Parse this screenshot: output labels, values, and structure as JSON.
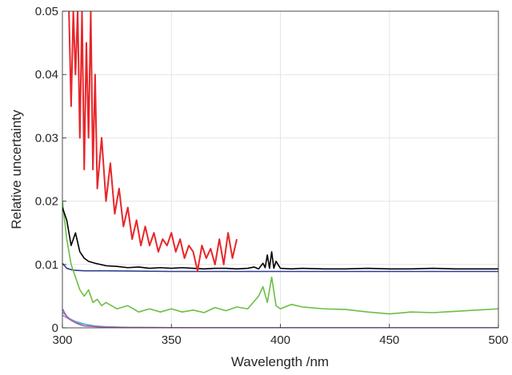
{
  "chart_data": {
    "type": "line",
    "title": "",
    "xlabel": "Wavelength /nm",
    "ylabel": "Relative uncertainty",
    "xlim": [
      300,
      500
    ],
    "ylim": [
      0,
      0.05
    ],
    "grid": true,
    "x_ticks": [
      300,
      350,
      400,
      450,
      500
    ],
    "x_tick_labels": [
      "300",
      "350",
      "400",
      "450",
      "500"
    ],
    "y_ticks": [
      0,
      0.01,
      0.02,
      0.03,
      0.04,
      0.05
    ],
    "y_tick_labels": [
      "0",
      "0.01",
      "0.02",
      "0.03",
      "0.04",
      "0.05"
    ],
    "series": [
      {
        "color": "#e8262a",
        "x": [
          303,
          304,
          305,
          306,
          307,
          308,
          309,
          310,
          311,
          312,
          313,
          314,
          315,
          316,
          318,
          320,
          322,
          324,
          326,
          328,
          330,
          332,
          334,
          336,
          338,
          340,
          342,
          344,
          346,
          348,
          350,
          352,
          354,
          356,
          358,
          360,
          362,
          364,
          366,
          368,
          370,
          372,
          374,
          376,
          378,
          380
        ],
        "y": [
          0.05,
          0.035,
          0.05,
          0.04,
          0.05,
          0.03,
          0.05,
          0.025,
          0.045,
          0.03,
          0.05,
          0.025,
          0.04,
          0.022,
          0.03,
          0.02,
          0.026,
          0.018,
          0.022,
          0.016,
          0.019,
          0.014,
          0.017,
          0.013,
          0.016,
          0.013,
          0.015,
          0.012,
          0.014,
          0.013,
          0.015,
          0.012,
          0.014,
          0.011,
          0.013,
          0.012,
          0.009,
          0.013,
          0.011,
          0.0125,
          0.01,
          0.014,
          0.01,
          0.015,
          0.011,
          0.014
        ]
      },
      {
        "color": "#000000",
        "x": [
          300,
          302,
          304,
          306,
          308,
          310,
          312,
          315,
          320,
          325,
          330,
          335,
          340,
          345,
          350,
          355,
          360,
          365,
          370,
          375,
          380,
          385,
          388,
          390,
          392,
          393,
          394,
          395,
          396,
          397,
          398,
          400,
          405,
          410,
          420,
          430,
          440,
          450,
          460,
          470,
          480,
          490,
          500
        ],
        "y": [
          0.019,
          0.017,
          0.013,
          0.015,
          0.012,
          0.011,
          0.0105,
          0.0102,
          0.0098,
          0.0097,
          0.0095,
          0.0096,
          0.0094,
          0.0095,
          0.0094,
          0.0095,
          0.0094,
          0.0093,
          0.0094,
          0.0094,
          0.0093,
          0.0094,
          0.0096,
          0.0093,
          0.0102,
          0.0095,
          0.0115,
          0.0094,
          0.012,
          0.0094,
          0.0105,
          0.0094,
          0.0093,
          0.0094,
          0.0093,
          0.0093,
          0.0094,
          0.0093,
          0.0093,
          0.0094,
          0.0093,
          0.0093,
          0.0093
        ]
      },
      {
        "color": "#2e3f8f",
        "x": [
          300,
          302,
          305,
          310,
          320,
          350,
          400,
          450,
          500
        ],
        "y": [
          0.0102,
          0.0094,
          0.0091,
          0.009,
          0.009,
          0.0089,
          0.0089,
          0.0089,
          0.0089
        ]
      },
      {
        "color": "#6abf45",
        "x": [
          300,
          302,
          304,
          306,
          308,
          310,
          312,
          314,
          316,
          318,
          320,
          325,
          330,
          335,
          340,
          345,
          350,
          355,
          360,
          365,
          370,
          375,
          380,
          385,
          390,
          392,
          394,
          396,
          398,
          400,
          405,
          410,
          420,
          430,
          440,
          450,
          460,
          470,
          480,
          490,
          500
        ],
        "y": [
          0.02,
          0.014,
          0.01,
          0.008,
          0.006,
          0.005,
          0.006,
          0.004,
          0.0045,
          0.0035,
          0.004,
          0.003,
          0.0035,
          0.0025,
          0.003,
          0.0025,
          0.003,
          0.0025,
          0.0028,
          0.0024,
          0.0032,
          0.0027,
          0.0033,
          0.003,
          0.005,
          0.0065,
          0.004,
          0.008,
          0.0035,
          0.003,
          0.0037,
          0.0033,
          0.003,
          0.0029,
          0.0025,
          0.0022,
          0.0025,
          0.0024,
          0.0026,
          0.0028,
          0.003
        ]
      },
      {
        "color": "#b05aa8",
        "x": [
          300,
          302,
          304,
          306,
          308,
          310,
          315,
          320,
          330,
          350,
          400,
          450,
          500
        ],
        "y": [
          0.003,
          0.0018,
          0.0012,
          0.0008,
          0.0005,
          0.0003,
          0.0002,
          0.0001,
          5e-05,
          2e-05,
          1e-05,
          1e-05,
          1e-05
        ]
      },
      {
        "color": "#4fb3c8",
        "x": [
          300,
          303,
          306,
          310,
          315,
          320,
          330,
          350,
          400,
          450,
          500
        ],
        "y": [
          0.0025,
          0.0015,
          0.001,
          0.0006,
          0.0003,
          0.00015,
          5e-05,
          2e-05,
          1e-05,
          1e-05,
          1e-05
        ]
      },
      {
        "color": "#9b8fd0",
        "x": [
          300,
          304,
          308,
          314,
          320,
          330,
          350,
          400,
          500
        ],
        "y": [
          0.002,
          0.0012,
          0.0007,
          0.0003,
          0.00015,
          5e-05,
          2e-05,
          1e-05,
          1e-05
        ]
      }
    ]
  }
}
